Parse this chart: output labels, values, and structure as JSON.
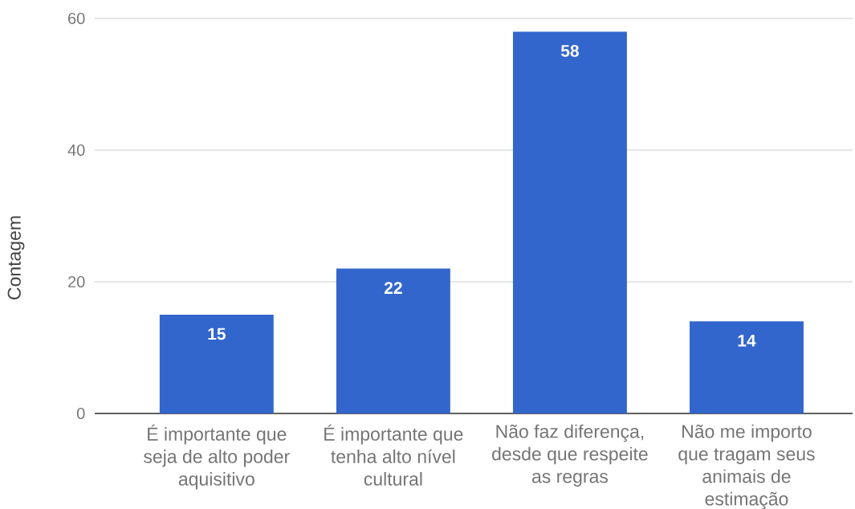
{
  "chart_data": {
    "type": "bar",
    "ylabel": "Contagem",
    "categories": [
      "É importante que seja de alto poder aquisitivo",
      "É importante que tenha alto nível cultural",
      "Não faz diferença, desde que respeite as regras",
      "Não me importo que tragam seus animais de estimação"
    ],
    "values": [
      15,
      22,
      58,
      14
    ],
    "color": "#3366cc",
    "ylim": [
      0,
      60
    ],
    "yticks": [
      0,
      20,
      40,
      60
    ],
    "grid": "y",
    "data_labels": true
  }
}
